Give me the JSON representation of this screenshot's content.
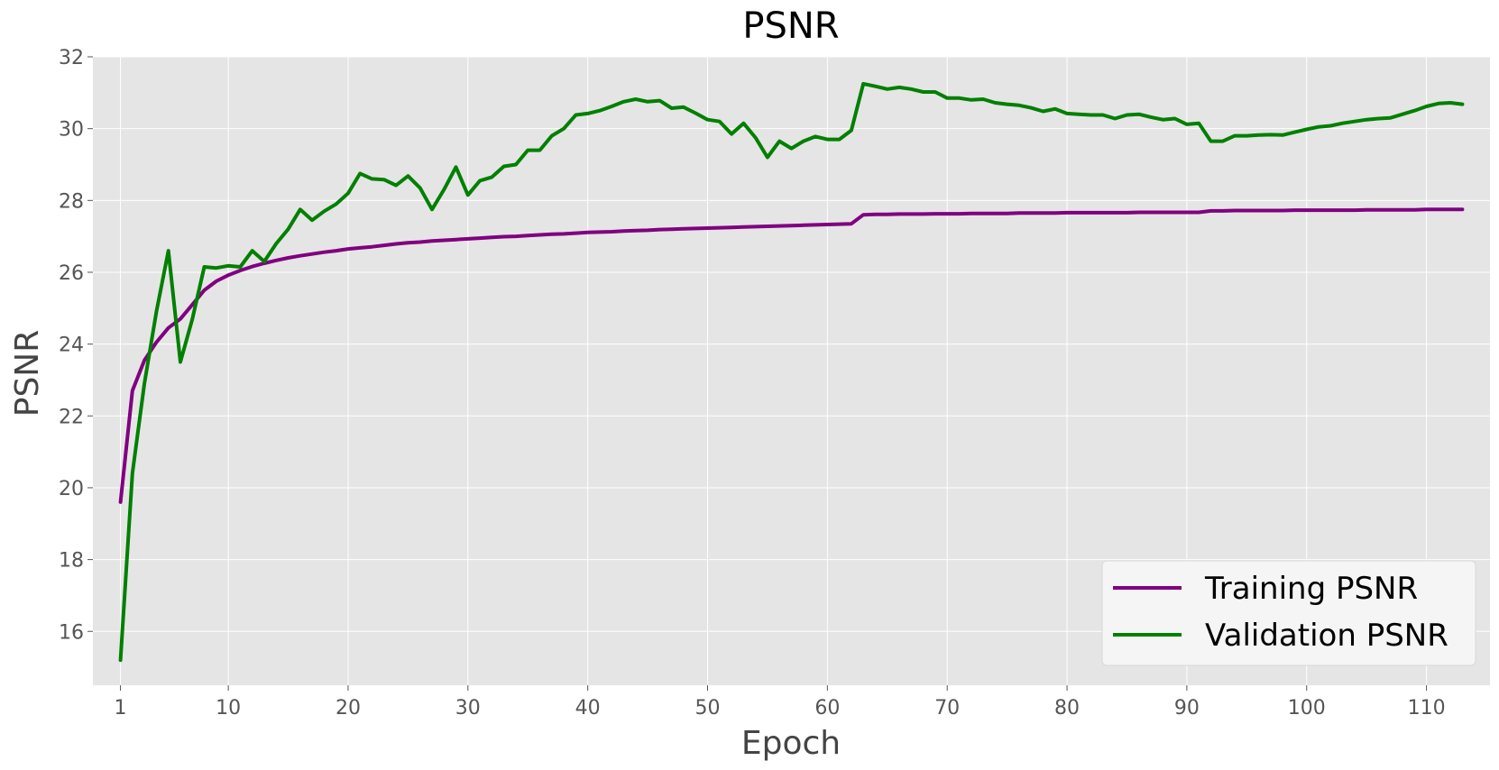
{
  "chart_data": {
    "type": "line",
    "title": "PSNR",
    "xlabel": "Epoch",
    "ylabel": "PSNR",
    "xlim": [
      -1.3,
      115.3
    ],
    "ylim": [
      14.5,
      32
    ],
    "xticks": [
      1,
      10,
      20,
      30,
      40,
      50,
      60,
      70,
      80,
      90,
      100,
      110
    ],
    "yticks": [
      16,
      18,
      20,
      22,
      24,
      26,
      28,
      30,
      32
    ],
    "grid": true,
    "legend_position": "bottom-right",
    "colors": {
      "plot_bg": "#e5e5e5",
      "grid": "#ffffff",
      "Training PSNR": "#800080",
      "Validation PSNR": "#008000"
    },
    "x": [
      1,
      2,
      3,
      4,
      5,
      6,
      7,
      8,
      9,
      10,
      11,
      12,
      13,
      14,
      15,
      16,
      17,
      18,
      19,
      20,
      21,
      22,
      23,
      24,
      25,
      26,
      27,
      28,
      29,
      30,
      31,
      32,
      33,
      34,
      35,
      36,
      37,
      38,
      39,
      40,
      41,
      42,
      43,
      44,
      45,
      46,
      47,
      48,
      49,
      50,
      51,
      52,
      53,
      54,
      55,
      56,
      57,
      58,
      59,
      60,
      61,
      62,
      63,
      64,
      65,
      66,
      67,
      68,
      69,
      70,
      71,
      72,
      73,
      74,
      75,
      76,
      77,
      78,
      79,
      80,
      81,
      82,
      83,
      84,
      85,
      86,
      87,
      88,
      89,
      90,
      91,
      92,
      93,
      94,
      95,
      96,
      97,
      98,
      99,
      100,
      101,
      102,
      103,
      104,
      105,
      106,
      107,
      108,
      109,
      110,
      111,
      112,
      113
    ],
    "series": [
      {
        "name": "Training PSNR",
        "values": [
          19.6,
          22.7,
          23.55,
          24.05,
          24.45,
          24.7,
          25.1,
          25.5,
          25.75,
          25.92,
          26.05,
          26.16,
          26.25,
          26.33,
          26.4,
          26.46,
          26.51,
          26.56,
          26.6,
          26.65,
          26.68,
          26.71,
          26.75,
          26.79,
          26.82,
          26.84,
          26.87,
          26.89,
          26.91,
          26.93,
          26.95,
          26.97,
          26.99,
          27.0,
          27.02,
          27.04,
          27.06,
          27.07,
          27.09,
          27.11,
          27.12,
          27.13,
          27.15,
          27.16,
          27.17,
          27.19,
          27.2,
          27.21,
          27.22,
          27.23,
          27.24,
          27.25,
          27.26,
          27.27,
          27.28,
          27.29,
          27.3,
          27.31,
          27.32,
          27.33,
          27.34,
          27.35,
          27.6,
          27.61,
          27.61,
          27.62,
          27.62,
          27.62,
          27.63,
          27.63,
          27.63,
          27.64,
          27.64,
          27.64,
          27.64,
          27.65,
          27.65,
          27.65,
          27.65,
          27.66,
          27.66,
          27.66,
          27.66,
          27.66,
          27.66,
          27.67,
          27.67,
          27.67,
          27.67,
          27.67,
          27.67,
          27.71,
          27.71,
          27.72,
          27.72,
          27.72,
          27.72,
          27.72,
          27.73,
          27.73,
          27.73,
          27.73,
          27.73,
          27.73,
          27.74,
          27.74,
          27.74,
          27.74,
          27.74,
          27.75,
          27.75,
          27.75,
          27.75
        ]
      },
      {
        "name": "Validation PSNR",
        "values": [
          15.2,
          20.4,
          22.9,
          24.9,
          26.6,
          23.5,
          24.7,
          26.15,
          26.12,
          26.18,
          26.15,
          26.6,
          26.3,
          26.8,
          27.2,
          27.75,
          27.45,
          27.7,
          27.9,
          28.2,
          28.75,
          28.6,
          28.58,
          28.42,
          28.68,
          28.35,
          27.75,
          28.3,
          28.93,
          28.15,
          28.55,
          28.65,
          28.95,
          29.0,
          29.4,
          29.4,
          29.8,
          30.0,
          30.38,
          30.42,
          30.5,
          30.62,
          30.75,
          30.82,
          30.75,
          30.78,
          30.57,
          30.6,
          30.43,
          30.25,
          30.2,
          29.85,
          30.15,
          29.75,
          29.2,
          29.65,
          29.45,
          29.65,
          29.78,
          29.7,
          29.7,
          29.95,
          31.25,
          31.18,
          31.1,
          31.15,
          31.1,
          31.02,
          31.02,
          30.85,
          30.85,
          30.8,
          30.82,
          30.72,
          30.68,
          30.65,
          30.58,
          30.48,
          30.55,
          30.42,
          30.4,
          30.38,
          30.38,
          30.28,
          30.38,
          30.4,
          30.32,
          30.25,
          30.28,
          30.12,
          30.15,
          29.65,
          29.65,
          29.8,
          29.8,
          29.82,
          29.83,
          29.82,
          29.9,
          29.98,
          30.05,
          30.08,
          30.15,
          30.2,
          30.25,
          30.28,
          30.3,
          30.4,
          30.5,
          30.62,
          30.7,
          30.72,
          30.68
        ]
      }
    ]
  }
}
